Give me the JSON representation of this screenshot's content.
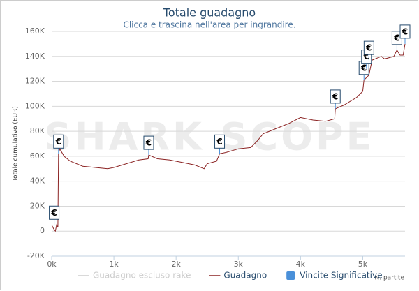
{
  "chart_data": {
    "type": "line",
    "title": "Totale guadagno",
    "subtitle": "Clicca e trascina nell'area per ingrandire.",
    "y_label": "Totale cumulativo (EUR)",
    "x_label": "N. partite",
    "watermark": "SHARK SCOPE",
    "xlim": [
      0,
      5680
    ],
    "ylim": [
      -20000,
      160000
    ],
    "xticks": [
      {
        "value": 0,
        "label": "0k"
      },
      {
        "value": 1000,
        "label": "1k"
      },
      {
        "value": 2000,
        "label": "2k"
      },
      {
        "value": 3000,
        "label": "3k"
      },
      {
        "value": 4000,
        "label": "4k"
      },
      {
        "value": 5000,
        "label": "5k"
      }
    ],
    "yticks": [
      {
        "value": -20000,
        "label": "-20K"
      },
      {
        "value": 0,
        "label": "0"
      },
      {
        "value": 20000,
        "label": "20K"
      },
      {
        "value": 40000,
        "label": "40K"
      },
      {
        "value": 60000,
        "label": "60K"
      },
      {
        "value": 80000,
        "label": "80K"
      },
      {
        "value": 100000,
        "label": "100K"
      },
      {
        "value": 120000,
        "label": "120K"
      },
      {
        "value": 140000,
        "label": "140K"
      },
      {
        "value": 160000,
        "label": "160K"
      }
    ],
    "grid": true,
    "series": [
      {
        "name": "Guadagno escluso rake",
        "color": "#cccccc",
        "visible": false
      },
      {
        "name": "Guadagno",
        "color": "#8b2323",
        "x": [
          0,
          30,
          60,
          80,
          100,
          110,
          130,
          200,
          300,
          500,
          700,
          900,
          1000,
          1200,
          1400,
          1550,
          1560,
          1700,
          1900,
          2100,
          2300,
          2450,
          2500,
          2650,
          2700,
          2800,
          3000,
          3200,
          3300,
          3400,
          3600,
          3800,
          4000,
          4200,
          4400,
          4550,
          4560,
          4700,
          4900,
          5000,
          5020,
          5100,
          5150,
          5300,
          5350,
          5500,
          5550,
          5600,
          5650,
          5680
        ],
        "values": [
          5000,
          2000,
          0,
          5000,
          3000,
          62000,
          66000,
          60000,
          56000,
          52000,
          51000,
          50000,
          51000,
          54000,
          57000,
          58000,
          61000,
          58000,
          57000,
          55000,
          53000,
          50000,
          54000,
          56000,
          62000,
          63000,
          66000,
          67000,
          72000,
          78000,
          82000,
          86000,
          91000,
          89000,
          88000,
          90000,
          98000,
          101000,
          107000,
          112000,
          121000,
          125000,
          137000,
          140000,
          138000,
          140000,
          145000,
          141000,
          141000,
          150000
        ]
      },
      {
        "name": "Vincite Significative",
        "type": "flags",
        "color": "#4a90d9",
        "text": "€",
        "x": [
          40,
          110,
          1560,
          2700,
          4560,
          5020,
          5060,
          5100,
          5550,
          5680
        ],
        "values": [
          5000,
          62000,
          61000,
          62000,
          98000,
          121000,
          130000,
          137000,
          145000,
          150000
        ]
      }
    ]
  }
}
